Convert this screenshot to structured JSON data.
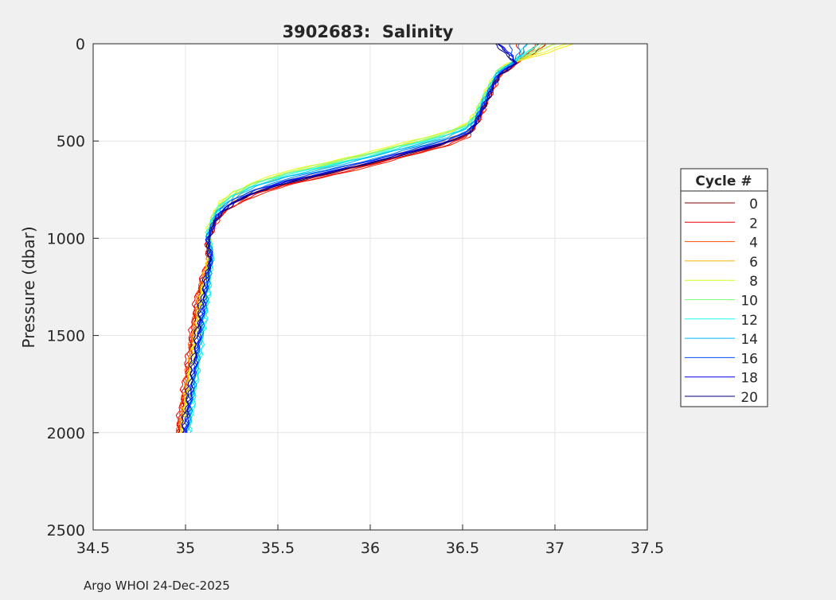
{
  "chart_data": {
    "type": "line",
    "title": "3902683:  Salinity",
    "xlabel": "",
    "ylabel": "Pressure (dbar)",
    "xlim": [
      34.5,
      37.5
    ],
    "ylim": [
      0,
      2500
    ],
    "y_reversed": true,
    "grid": true,
    "xticks": [
      "34.5",
      "35",
      "35.5",
      "36",
      "36.5",
      "37",
      "37.5"
    ],
    "xtick_values": [
      34.5,
      35,
      35.5,
      36,
      36.5,
      37,
      37.5
    ],
    "yticks": [
      "0",
      "500",
      "1000",
      "1500",
      "2000",
      "2500"
    ],
    "ytick_values": [
      0,
      500,
      1000,
      1500,
      2000,
      2500
    ],
    "legend": {
      "title": "Cycle #",
      "placement": "right",
      "entries": [
        "0",
        "2",
        "4",
        "6",
        "8",
        "10",
        "12",
        "14",
        "16",
        "18",
        "20"
      ],
      "colors": [
        "#800000",
        "#E60000",
        "#FF4D00",
        "#FFB300",
        "#CCFF1A",
        "#80FF80",
        "#1AFFE6",
        "#00B3FF",
        "#004DFF",
        "#0000E6",
        "#000080"
      ]
    },
    "base_profile": {
      "pressure": [
        0,
        50,
        100,
        150,
        200,
        300,
        400,
        450,
        500,
        550,
        600,
        650,
        700,
        750,
        800,
        850,
        900,
        1000,
        1100,
        1200,
        1400,
        1600,
        1800,
        2000
      ],
      "salinity": [
        36.9,
        36.85,
        36.78,
        36.7,
        36.67,
        36.62,
        36.57,
        36.53,
        36.4,
        36.2,
        36.0,
        35.78,
        35.55,
        35.38,
        35.27,
        35.2,
        35.16,
        35.12,
        35.14,
        35.12,
        35.09,
        35.06,
        35.03,
        35.0
      ]
    },
    "series": [
      {
        "name": "0",
        "color": "#800000",
        "depth_shift_dbar": 15,
        "deep_offset": -0.03,
        "surface_salinity": 36.95
      },
      {
        "name": "1",
        "color": "#B30000",
        "depth_shift_dbar": 20,
        "deep_offset": -0.04,
        "surface_salinity": 36.9
      },
      {
        "name": "2",
        "color": "#E60000",
        "depth_shift_dbar": 25,
        "deep_offset": -0.05,
        "surface_salinity": 36.85
      },
      {
        "name": "3",
        "color": "#FF1A00",
        "depth_shift_dbar": 30,
        "deep_offset": -0.04,
        "surface_salinity": 36.8
      },
      {
        "name": "4",
        "color": "#FF4D00",
        "depth_shift_dbar": 10,
        "deep_offset": -0.04,
        "surface_salinity": 36.9
      },
      {
        "name": "5",
        "color": "#FF8000",
        "depth_shift_dbar": 0,
        "deep_offset": -0.03,
        "surface_salinity": 36.95
      },
      {
        "name": "6",
        "color": "#FFB300",
        "depth_shift_dbar": -20,
        "deep_offset": -0.03,
        "surface_salinity": 37.0
      },
      {
        "name": "7",
        "color": "#FFE600",
        "depth_shift_dbar": -35,
        "deep_offset": -0.02,
        "surface_salinity": 37.1
      },
      {
        "name": "8",
        "color": "#E6FF1A",
        "depth_shift_dbar": -45,
        "deep_offset": -0.02,
        "surface_salinity": 37.05
      },
      {
        "name": "9",
        "color": "#B3FF4D",
        "depth_shift_dbar": -40,
        "deep_offset": 0.0,
        "surface_salinity": 37.0
      },
      {
        "name": "10",
        "color": "#80FF80",
        "depth_shift_dbar": -35,
        "deep_offset": 0.01,
        "surface_salinity": 36.95
      },
      {
        "name": "11",
        "color": "#4DFFB3",
        "depth_shift_dbar": -30,
        "deep_offset": 0.01,
        "surface_salinity": 36.9
      },
      {
        "name": "12",
        "color": "#1AFFE6",
        "depth_shift_dbar": -25,
        "deep_offset": 0.02,
        "surface_salinity": 36.9
      },
      {
        "name": "13",
        "color": "#00E6FF",
        "depth_shift_dbar": -20,
        "deep_offset": 0.02,
        "surface_salinity": 36.85
      },
      {
        "name": "14",
        "color": "#00B3FF",
        "depth_shift_dbar": -15,
        "deep_offset": 0.01,
        "surface_salinity": 36.85
      },
      {
        "name": "15",
        "color": "#0080FF",
        "depth_shift_dbar": -5,
        "deep_offset": 0.01,
        "surface_salinity": 36.8
      },
      {
        "name": "16",
        "color": "#004DFF",
        "depth_shift_dbar": 0,
        "deep_offset": 0.0,
        "surface_salinity": 36.75
      },
      {
        "name": "17",
        "color": "#001AFF",
        "depth_shift_dbar": 5,
        "deep_offset": 0.0,
        "surface_salinity": 36.7
      },
      {
        "name": "18",
        "color": "#0000E6",
        "depth_shift_dbar": 10,
        "deep_offset": 0.0,
        "surface_salinity": 36.7
      },
      {
        "name": "19",
        "color": "#0000B3",
        "depth_shift_dbar": 12,
        "deep_offset": -0.01,
        "surface_salinity": 36.68
      },
      {
        "name": "20",
        "color": "#000080",
        "depth_shift_dbar": 15,
        "deep_offset": -0.02,
        "surface_salinity": 36.67
      }
    ]
  },
  "footer": "Argo WHOI 24-Dec-2025"
}
